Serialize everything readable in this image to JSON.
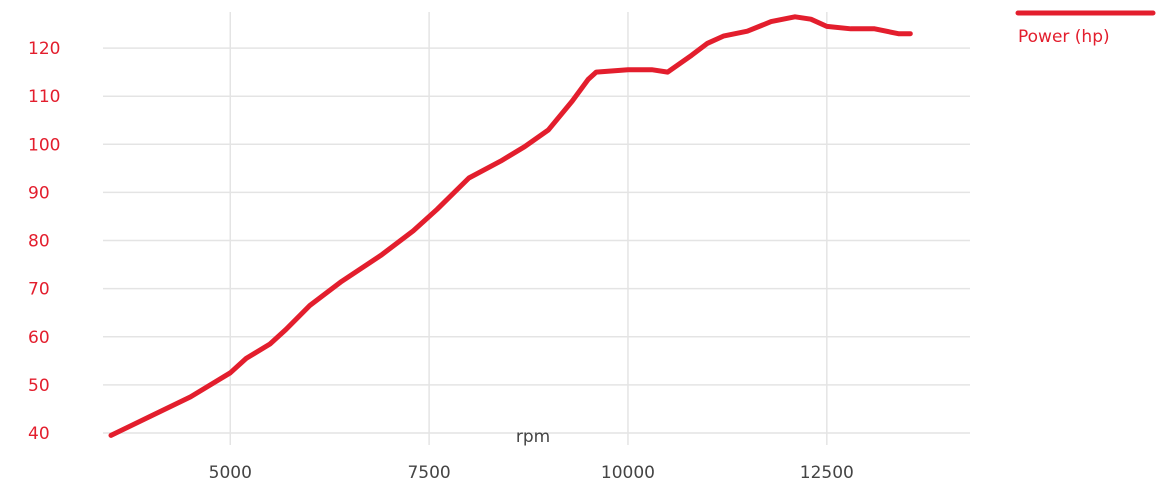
{
  "chart_data": {
    "type": "line",
    "title": "",
    "xlabel": "rpm",
    "ylabel": "",
    "x_ticks": [
      5000,
      7500,
      10000,
      12500
    ],
    "y_ticks": [
      40,
      50,
      60,
      70,
      80,
      90,
      100,
      110,
      120
    ],
    "xlim": [
      3400,
      14300
    ],
    "ylim": [
      37.5,
      127.5
    ],
    "grid": true,
    "legend_position": "top-right",
    "series": [
      {
        "name": "Power (hp)",
        "color": "#e31e2d",
        "points": [
          [
            3500,
            39.5
          ],
          [
            4000,
            43.5
          ],
          [
            4500,
            47.5
          ],
          [
            5000,
            52.5
          ],
          [
            5200,
            55.5
          ],
          [
            5500,
            58.5
          ],
          [
            5700,
            61.5
          ],
          [
            6000,
            66.5
          ],
          [
            6400,
            71.5
          ],
          [
            6900,
            77.0
          ],
          [
            7300,
            82.0
          ],
          [
            7600,
            86.5
          ],
          [
            8000,
            93.0
          ],
          [
            8400,
            96.5
          ],
          [
            8700,
            99.5
          ],
          [
            9000,
            103.0
          ],
          [
            9300,
            109.0
          ],
          [
            9500,
            113.5
          ],
          [
            9600,
            115.0
          ],
          [
            10000,
            115.5
          ],
          [
            10300,
            115.5
          ],
          [
            10500,
            115.0
          ],
          [
            10800,
            118.5
          ],
          [
            11000,
            121.0
          ],
          [
            11200,
            122.5
          ],
          [
            11500,
            123.5
          ],
          [
            11800,
            125.5
          ],
          [
            12100,
            126.5
          ],
          [
            12300,
            126.0
          ],
          [
            12500,
            124.5
          ],
          [
            12800,
            124.0
          ],
          [
            13100,
            124.0
          ],
          [
            13400,
            123.0
          ],
          [
            13550,
            123.0
          ]
        ]
      }
    ]
  }
}
